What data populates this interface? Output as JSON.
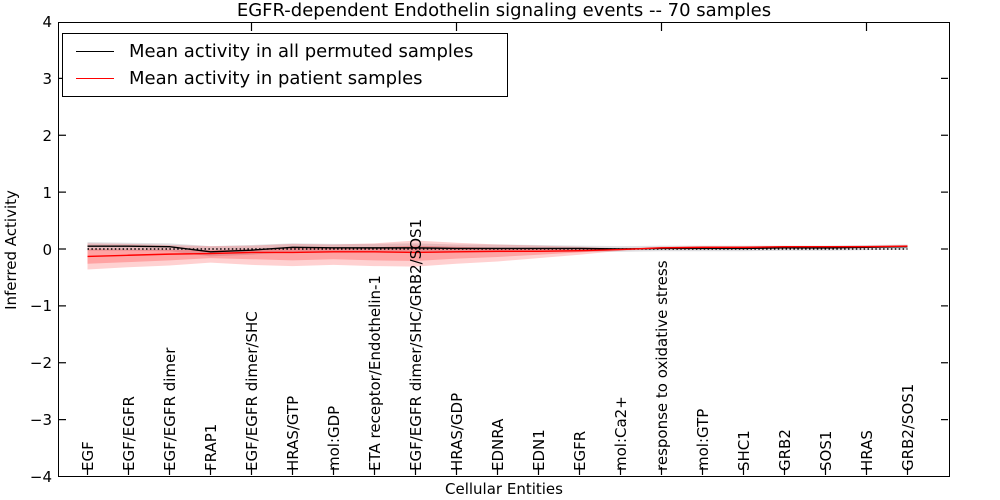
{
  "title": "EGFR-dependent Endothelin signaling events -- 70 samples",
  "axes": {
    "ylabel": "Inferred Activity",
    "xlabel": "Cellular Entities",
    "yticks": [
      "4",
      "3",
      "2",
      "1",
      "0",
      "−1",
      "−2",
      "−3",
      "−4"
    ]
  },
  "legend": {
    "items": [
      {
        "label": "Mean activity in all permuted samples",
        "color": "#000000"
      },
      {
        "label": "Mean activity in patient samples",
        "color": "#ff0000"
      }
    ]
  },
  "chart_data": {
    "type": "line",
    "title": "EGFR-dependent Endothelin signaling events -- 70 samples",
    "xlabel": "Cellular Entities",
    "ylabel": "Inferred Activity",
    "ylim": [
      -4,
      4
    ],
    "yticks": [
      4,
      3,
      2,
      1,
      0,
      -1,
      -2,
      -3,
      -4
    ],
    "grid": false,
    "legend_position": "upper left",
    "categories": [
      "EGF",
      "EGF/EGFR",
      "EGF/EGFR dimer",
      "FRAP1",
      "EGF/EGFR dimer/SHC",
      "HRAS/GTP",
      "mol:GDP",
      "ETA receptor/Endothelin-1",
      "EGF/EGFR dimer/SHC/GRB2/SOS1",
      "HRAS/GDP",
      "EDNRA",
      "EDN1",
      "EGFR",
      "mol:Ca2+",
      "response to oxidative stress",
      "mol:GTP",
      "SHC1",
      "GRB2",
      "SOS1",
      "HRAS",
      "GRB2/SOS1"
    ],
    "series": [
      {
        "name": "Mean activity in all permuted samples",
        "color": "#000000",
        "values": [
          0.05,
          0.05,
          0.04,
          -0.05,
          -0.02,
          0.03,
          0.02,
          0.02,
          0.02,
          0.01,
          0.01,
          0.01,
          0.01,
          0.0,
          0.01,
          0.01,
          0.01,
          0.02,
          0.02,
          0.03,
          0.04
        ]
      },
      {
        "name": "Mean activity in patient samples",
        "color": "#ff0000",
        "values": [
          -0.13,
          -0.11,
          -0.09,
          -0.08,
          -0.06,
          -0.06,
          -0.05,
          -0.05,
          -0.06,
          -0.05,
          -0.04,
          -0.04,
          -0.03,
          -0.01,
          0.02,
          0.03,
          0.03,
          0.04,
          0.04,
          0.04,
          0.05
        ]
      }
    ],
    "bands": [
      {
        "name": "permuted-samples-range",
        "color": "#555566",
        "opacity": 0.18,
        "hi": [
          0.12,
          0.11,
          0.1,
          0.05,
          0.07,
          0.1,
          0.09,
          0.09,
          0.1,
          0.08,
          0.08,
          0.07,
          0.06,
          0.05,
          0.06,
          0.06,
          0.06,
          0.06,
          0.06,
          0.07,
          0.08
        ],
        "lo": [
          -0.03,
          -0.03,
          -0.04,
          -0.13,
          -0.1,
          -0.05,
          -0.05,
          -0.05,
          -0.06,
          -0.06,
          -0.06,
          -0.05,
          -0.05,
          -0.05,
          -0.04,
          -0.04,
          -0.04,
          -0.03,
          -0.03,
          -0.02,
          -0.01
        ]
      },
      {
        "name": "patient-samples-range-outer",
        "color": "#ff0000",
        "opacity": 0.18,
        "hi": [
          0.1,
          0.09,
          0.07,
          0.05,
          0.06,
          0.09,
          0.08,
          0.1,
          0.15,
          0.11,
          0.08,
          0.06,
          0.04,
          0.01,
          0.04,
          0.05,
          0.05,
          0.05,
          0.05,
          0.06,
          0.07
        ],
        "lo": [
          -0.36,
          -0.32,
          -0.29,
          -0.24,
          -0.28,
          -0.3,
          -0.28,
          -0.3,
          -0.31,
          -0.26,
          -0.22,
          -0.16,
          -0.1,
          -0.03,
          0.0,
          0.01,
          0.02,
          0.02,
          0.03,
          0.03,
          0.03
        ]
      },
      {
        "name": "patient-samples-range-inner",
        "color": "#ff0000",
        "opacity": 0.22,
        "hi": [
          0.0,
          -0.01,
          -0.01,
          -0.02,
          -0.01,
          0.02,
          0.02,
          0.03,
          0.06,
          0.04,
          0.02,
          0.01,
          0.0,
          0.0,
          0.03,
          0.04,
          0.04,
          0.04,
          0.05,
          0.05,
          0.06
        ],
        "lo": [
          -0.26,
          -0.23,
          -0.2,
          -0.16,
          -0.18,
          -0.2,
          -0.18,
          -0.2,
          -0.21,
          -0.17,
          -0.14,
          -0.1,
          -0.06,
          -0.02,
          0.01,
          0.02,
          0.02,
          0.03,
          0.03,
          0.03,
          0.04
        ]
      }
    ],
    "zero_line": {
      "style": "dotted",
      "color": "#000000",
      "y": 0
    },
    "top_axis_ticks_at": [
      5,
      10,
      15,
      20
    ]
  }
}
